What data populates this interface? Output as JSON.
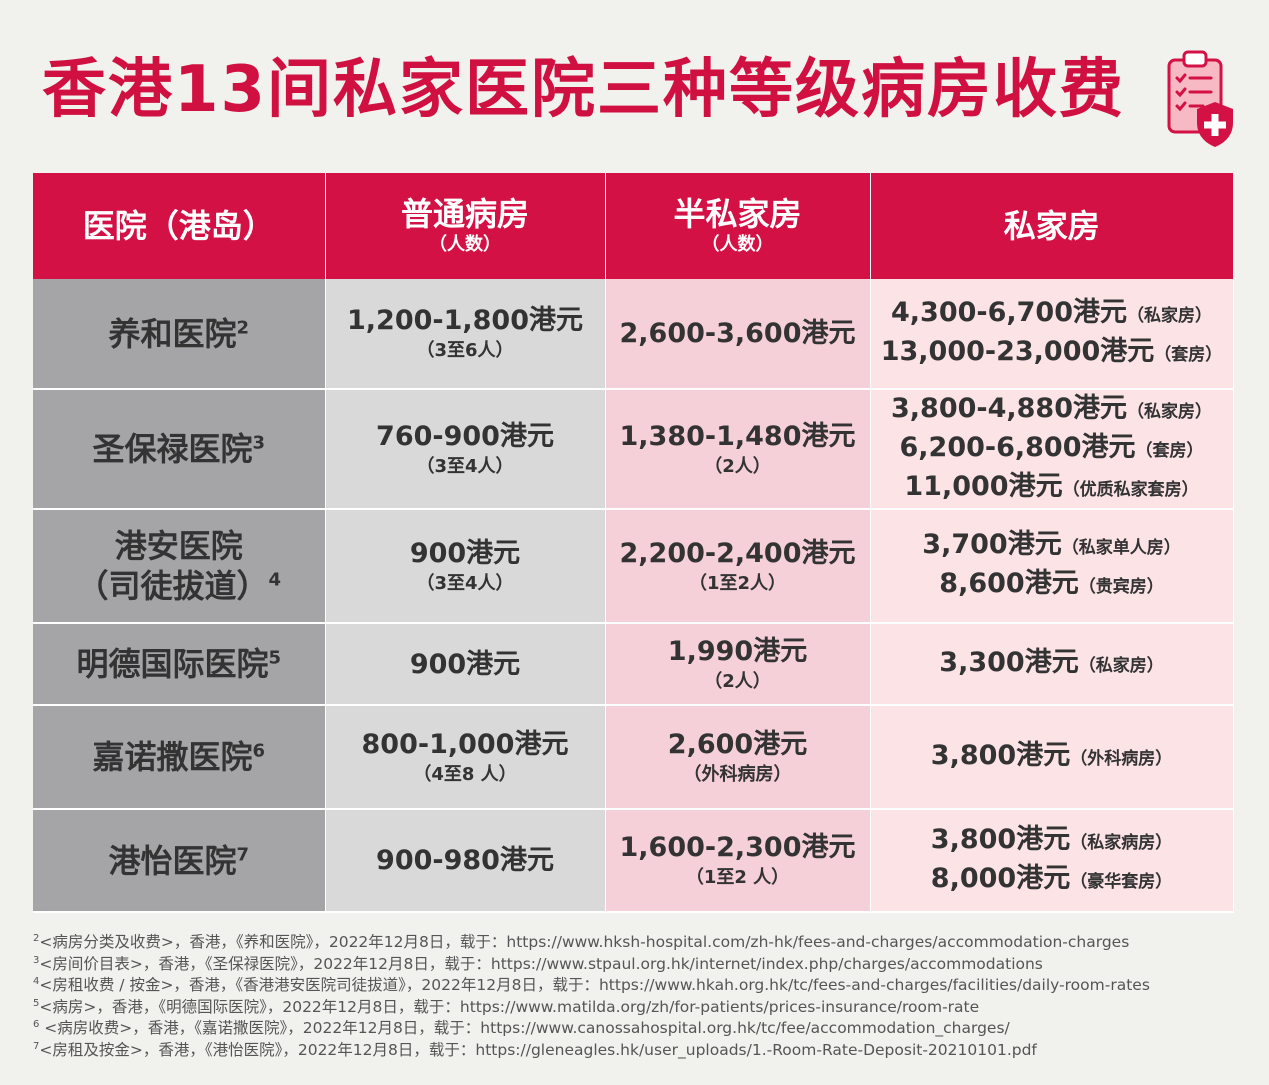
{
  "title": "香港13间私家医院三种等级病房收费",
  "table": {
    "headers": [
      {
        "main": "医院（港岛）",
        "sub": ""
      },
      {
        "main": "普通病房",
        "sub": "（人数）"
      },
      {
        "main": "半私家房",
        "sub": "（人数）"
      },
      {
        "main": "私家房",
        "sub": ""
      }
    ],
    "rows": [
      {
        "hospital": [
          "养和医院"
        ],
        "sup": "2",
        "general": {
          "price": "1,200-1,800港元",
          "note": "（3至6人）"
        },
        "semi": {
          "price": "2,600-3,600港元",
          "note": ""
        },
        "private": [
          {
            "price": "4,300-6,700港元",
            "note": "（私家房）"
          },
          {
            "price": "13,000-23,000港元",
            "note": "（套房）"
          }
        ]
      },
      {
        "hospital": [
          "圣保禄医院"
        ],
        "sup": "3",
        "general": {
          "price": "760-900港元",
          "note": "（3至4人）"
        },
        "semi": {
          "price": "1,380-1,480港元",
          "note": "（2人）"
        },
        "private": [
          {
            "price": "3,800-4,880港元",
            "note": "（私家房）"
          },
          {
            "price": "6,200-6,800港元",
            "note": "（套房）"
          },
          {
            "price": "11,000港元",
            "note": "（优质私家套房）"
          }
        ]
      },
      {
        "hospital": [
          "港安医院",
          "（司徒拔道）"
        ],
        "sup": "4",
        "general": {
          "price": "900港元",
          "note": "（3至4人）"
        },
        "semi": {
          "price": "2,200-2,400港元",
          "note": "（1至2人）"
        },
        "private": [
          {
            "price": "3,700港元",
            "note": "（私家单人房）"
          },
          {
            "price": "8,600港元",
            "note": "（贵宾房）"
          }
        ]
      },
      {
        "hospital": [
          "明德国际医院"
        ],
        "sup": "5",
        "general": {
          "price": "900港元",
          "note": ""
        },
        "semi": {
          "price": "1,990港元",
          "note": "（2人）"
        },
        "private": [
          {
            "price": "3,300港元",
            "note": "（私家房）"
          }
        ]
      },
      {
        "hospital": [
          "嘉诺撒医院"
        ],
        "sup": "6",
        "general": {
          "price": "800-1,000港元",
          "note": "（4至8 人）"
        },
        "semi": {
          "price": "2,600港元",
          "note": "（外科病房）"
        },
        "private": [
          {
            "price": "3,800港元",
            "note": "（外科病房）"
          }
        ]
      },
      {
        "hospital": [
          "港怡医院"
        ],
        "sup": "7",
        "general": {
          "price": "900-980港元",
          "note": ""
        },
        "semi": {
          "price": "1,600-2,300港元",
          "note": "（1至2 人）"
        },
        "private": [
          {
            "price": "3,800港元",
            "note": "（私家病房）"
          },
          {
            "price": "8,000港元",
            "note": "（豪华套房）"
          }
        ]
      }
    ]
  },
  "footnotes": [
    {
      "num": "2",
      "text": "<病房分类及收费>，香港，《养和医院》，2022年12月8日，载于：https://www.hksh-hospital.com/zh-hk/fees-and-charges/accommodation-charges"
    },
    {
      "num": "3",
      "text": "<房间价目表>，香港，《圣保禄医院》，2022年12月8日，载于：https://www.stpaul.org.hk/internet/index.php/charges/accommodations"
    },
    {
      "num": "4",
      "text": "<房租收费 / 按金>，香港，《香港港安医院司徒拔道》，2022年12月8日，载于：https://www.hkah.org.hk/tc/fees-and-charges/facilities/daily-room-rates"
    },
    {
      "num": "5",
      "text": "<病房>，香港，《明德国际医院》，2022年12月8日，载于：https://www.matilda.org/zh/for-patients/prices-insurance/room-rate"
    },
    {
      "num": "6",
      "text": " <病房收费>，香港，《嘉诺撒医院》，2022年12月8日，载于：https://www.canossahospital.org.hk/tc/fee/accommodation_charges/"
    },
    {
      "num": "7",
      "text": "<房租及按金>，香港，《港怡医院》，2022年12月8日，载于：https://gleneagles.hk/user_uploads/1.-Room-Rate-Deposit-20210101.pdf"
    }
  ],
  "colors": {
    "accent": "#d31145",
    "hospital_col": "#a5a5a8",
    "general_col": "#d9d9d9",
    "semi_col": "#f6d0d9",
    "private_col": "#fbe3e6"
  },
  "icons": {
    "title_icon": "medical-clipboard-shield-icon"
  }
}
